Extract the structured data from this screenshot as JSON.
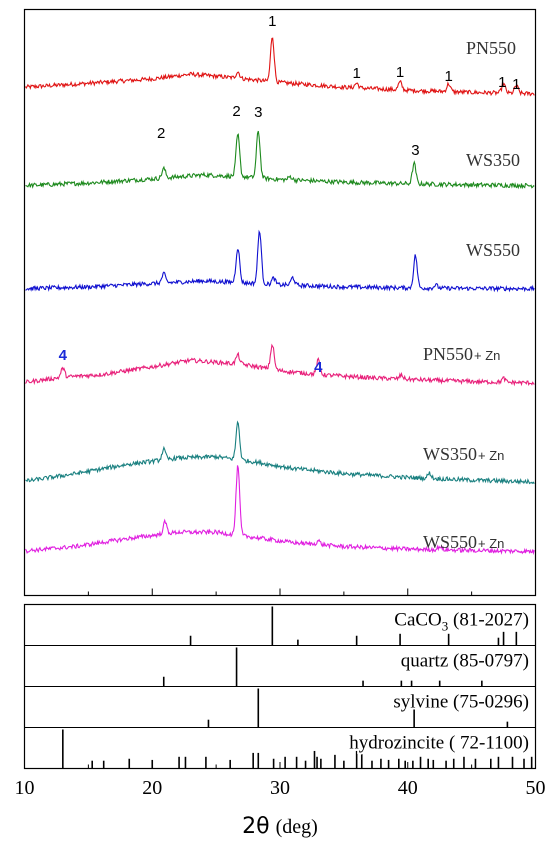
{
  "chart_data": {
    "type": "line",
    "xlabel": "2θ (deg)",
    "x_axis": {
      "min": 10,
      "max": 50,
      "ticks": [
        10,
        20,
        30,
        40,
        50
      ]
    },
    "series": [
      {
        "name": "PN550",
        "color": "#e01414",
        "label_main": "PN550",
        "label_suffix": "",
        "baseline": [
          [
            10,
            0.3
          ],
          [
            15,
            0.45
          ],
          [
            20,
            0.62
          ],
          [
            23,
            0.8
          ],
          [
            26,
            0.68
          ],
          [
            30,
            0.48
          ],
          [
            35,
            0.3
          ],
          [
            40,
            0.18
          ],
          [
            45,
            0.1
          ],
          [
            50,
            0.05
          ]
        ],
        "peaks": [
          [
            26.7,
            0.25
          ],
          [
            29.4,
            1.75
          ],
          [
            36.0,
            0.18
          ],
          [
            39.4,
            0.3
          ],
          [
            43.2,
            0.3
          ],
          [
            47.5,
            0.35
          ],
          [
            48.5,
            0.3
          ]
        ]
      },
      {
        "name": "WS350",
        "color": "#1e8a1e",
        "label_main": "WS350",
        "label_suffix": "",
        "baseline": [
          [
            10,
            0.05
          ],
          [
            15,
            0.15
          ],
          [
            20,
            0.3
          ],
          [
            24,
            0.45
          ],
          [
            27,
            0.38
          ],
          [
            30,
            0.28
          ],
          [
            35,
            0.18
          ],
          [
            40,
            0.12
          ],
          [
            45,
            0.08
          ],
          [
            50,
            0.05
          ]
        ],
        "peaks": [
          [
            20.9,
            0.35
          ],
          [
            26.7,
            1.55
          ],
          [
            28.3,
            1.75
          ],
          [
            30.8,
            0.12
          ],
          [
            40.5,
            0.75
          ]
        ]
      },
      {
        "name": "WS550",
        "color": "#1010d0",
        "label_main": "WS550",
        "label_suffix": "",
        "baseline": [
          [
            10,
            0.05
          ],
          [
            15,
            0.12
          ],
          [
            20,
            0.25
          ],
          [
            24,
            0.35
          ],
          [
            27,
            0.28
          ],
          [
            30,
            0.2
          ],
          [
            35,
            0.12
          ],
          [
            40,
            0.08
          ],
          [
            45,
            0.06
          ],
          [
            50,
            0.05
          ]
        ],
        "peaks": [
          [
            20.9,
            0.35
          ],
          [
            26.7,
            1.35
          ],
          [
            28.4,
            2.05
          ],
          [
            29.5,
            0.25
          ],
          [
            31.0,
            0.3
          ],
          [
            40.6,
            1.25
          ],
          [
            42.2,
            0.12
          ]
        ]
      },
      {
        "name": "PN550+ Zn",
        "color": "#e8207a",
        "label_main": "PN550",
        "label_suffix": "+ Zn",
        "baseline": [
          [
            10,
            0.1
          ],
          [
            13,
            0.3
          ],
          [
            16,
            0.4
          ],
          [
            20,
            0.7
          ],
          [
            23,
            0.95
          ],
          [
            27,
            0.8
          ],
          [
            30,
            0.55
          ],
          [
            33,
            0.4
          ],
          [
            37,
            0.28
          ],
          [
            42,
            0.18
          ],
          [
            46,
            0.12
          ],
          [
            50,
            0.08
          ]
        ],
        "peaks": [
          [
            13.0,
            0.35
          ],
          [
            26.7,
            0.35
          ],
          [
            29.4,
            0.95
          ],
          [
            33.0,
            0.55
          ],
          [
            39.5,
            0.15
          ],
          [
            47.5,
            0.15
          ]
        ]
      },
      {
        "name": "WS350+ Zn",
        "color": "#1a8080",
        "label_main": "WS350",
        "label_suffix": "+ Zn",
        "baseline": [
          [
            10,
            0.1
          ],
          [
            14,
            0.4
          ],
          [
            18,
            0.75
          ],
          [
            22,
            1.0
          ],
          [
            25,
            1.05
          ],
          [
            28,
            0.85
          ],
          [
            31,
            0.6
          ],
          [
            35,
            0.4
          ],
          [
            40,
            0.25
          ],
          [
            45,
            0.15
          ],
          [
            50,
            0.08
          ]
        ],
        "peaks": [
          [
            20.9,
            0.4
          ],
          [
            26.7,
            1.45
          ],
          [
            41.7,
            0.2
          ]
        ]
      },
      {
        "name": "WS550+ Zn",
        "color": "#e020e0",
        "label_main": "WS550",
        "label_suffix": "+ Zn",
        "baseline": [
          [
            10,
            0.08
          ],
          [
            14,
            0.25
          ],
          [
            18,
            0.55
          ],
          [
            22,
            0.8
          ],
          [
            25,
            0.8
          ],
          [
            28,
            0.6
          ],
          [
            31,
            0.4
          ],
          [
            35,
            0.25
          ],
          [
            40,
            0.15
          ],
          [
            45,
            0.1
          ],
          [
            50,
            0.06
          ]
        ],
        "peaks": [
          [
            21.0,
            0.45
          ],
          [
            26.7,
            2.65
          ],
          [
            33.0,
            0.15
          ],
          [
            42.5,
            0.12
          ]
        ]
      }
    ],
    "peak_annotations": [
      {
        "series": 0,
        "label": "1",
        "x": 29.4,
        "color": "#000000"
      },
      {
        "series": 0,
        "label": "1",
        "x": 36.0,
        "color": "#000000"
      },
      {
        "series": 0,
        "label": "1",
        "x": 39.4,
        "color": "#000000"
      },
      {
        "series": 0,
        "label": "1",
        "x": 43.2,
        "color": "#000000"
      },
      {
        "series": 0,
        "label": "1",
        "x": 47.4,
        "color": "#000000"
      },
      {
        "series": 0,
        "label": "1",
        "x": 48.5,
        "color": "#000000"
      },
      {
        "series": 1,
        "label": "2",
        "x": 20.7,
        "color": "#000000"
      },
      {
        "series": 1,
        "label": "2",
        "x": 26.6,
        "color": "#000000"
      },
      {
        "series": 1,
        "label": "3",
        "x": 28.3,
        "color": "#000000"
      },
      {
        "series": 1,
        "label": "3",
        "x": 40.6,
        "color": "#000000"
      },
      {
        "series": 3,
        "label": "4",
        "x": 13.0,
        "color": "#1a2ad8"
      },
      {
        "series": 3,
        "label": "4",
        "x": 33.0,
        "color": "#1a2ad8"
      }
    ],
    "reference_patterns": [
      {
        "name": "CaCO3 (81-2027)",
        "label_base": "CaCO",
        "label_sub": "3",
        "label_rest": " (81-2027)",
        "lines": [
          [
            23.0,
            0.25
          ],
          [
            29.4,
            1.0
          ],
          [
            31.4,
            0.15
          ],
          [
            36.0,
            0.25
          ],
          [
            39.4,
            0.3
          ],
          [
            43.2,
            0.3
          ],
          [
            47.1,
            0.2
          ],
          [
            47.5,
            0.35
          ],
          [
            48.5,
            0.35
          ]
        ]
      },
      {
        "name": "quartz (85-0797)",
        "label_base": "quartz (85-0797)",
        "label_sub": "",
        "label_rest": "",
        "lines": [
          [
            20.9,
            0.25
          ],
          [
            26.6,
            1.0
          ],
          [
            36.5,
            0.15
          ],
          [
            39.5,
            0.15
          ],
          [
            40.3,
            0.15
          ],
          [
            42.5,
            0.15
          ],
          [
            45.8,
            0.15
          ]
        ]
      },
      {
        "name": "sylvine (75-0296)",
        "label_base": "sylvine (75-0296)",
        "label_sub": "",
        "label_rest": "",
        "lines": [
          [
            24.4,
            0.2
          ],
          [
            28.3,
            1.0
          ],
          [
            40.5,
            0.65
          ],
          [
            47.8,
            0.15
          ]
        ]
      },
      {
        "name": "hydrozincite ( 72-1100)",
        "label_base": "hydrozincite ( 72-1100)",
        "label_sub": "",
        "label_rest": "",
        "lines": [
          [
            13.0,
            1.0
          ],
          [
            15.3,
            0.2
          ],
          [
            16.2,
            0.2
          ],
          [
            18.2,
            0.25
          ],
          [
            20.0,
            0.22
          ],
          [
            22.1,
            0.3
          ],
          [
            22.6,
            0.3
          ],
          [
            24.2,
            0.3
          ],
          [
            26.1,
            0.22
          ],
          [
            27.9,
            0.4
          ],
          [
            28.3,
            0.4
          ],
          [
            29.5,
            0.25
          ],
          [
            30.4,
            0.3
          ],
          [
            31.3,
            0.3
          ],
          [
            32.0,
            0.2
          ],
          [
            32.7,
            0.45
          ],
          [
            32.9,
            0.3
          ],
          [
            33.2,
            0.25
          ],
          [
            34.3,
            0.35
          ],
          [
            35.0,
            0.2
          ],
          [
            36.0,
            0.45
          ],
          [
            36.4,
            0.45
          ],
          [
            37.2,
            0.2
          ],
          [
            37.9,
            0.25
          ],
          [
            38.5,
            0.22
          ],
          [
            39.3,
            0.25
          ],
          [
            39.8,
            0.2
          ],
          [
            40.4,
            0.2
          ],
          [
            41.0,
            0.3
          ],
          [
            41.6,
            0.25
          ],
          [
            42.0,
            0.22
          ],
          [
            43.0,
            0.2
          ],
          [
            43.6,
            0.25
          ],
          [
            44.4,
            0.3
          ],
          [
            45.3,
            0.25
          ],
          [
            46.5,
            0.25
          ],
          [
            47.1,
            0.3
          ],
          [
            48.2,
            0.3
          ],
          [
            49.1,
            0.25
          ],
          [
            49.7,
            0.3
          ]
        ]
      }
    ]
  }
}
